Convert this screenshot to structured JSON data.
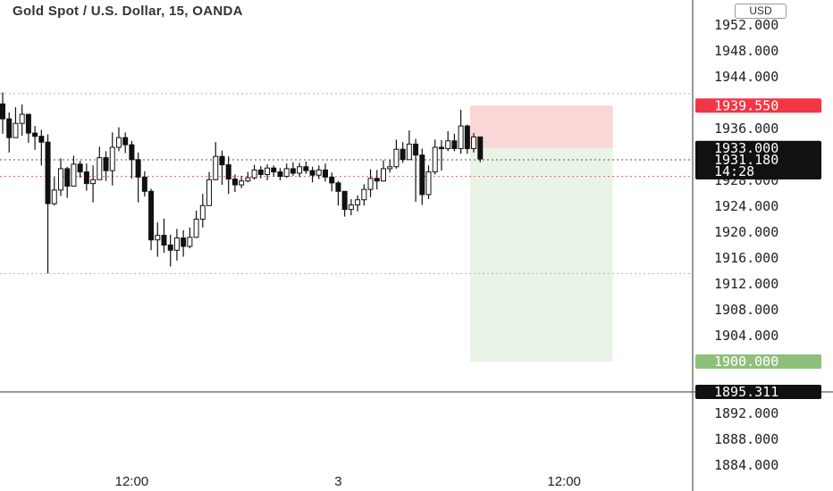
{
  "header": {
    "title": "Gold Spot / U.S. Dollar, 15, OANDA",
    "currency": "USD"
  },
  "colors": {
    "candle": "#111111",
    "stop_zone": "#f9d7d6",
    "target_zone": "#e9f4e6",
    "stop_label": "#f23645",
    "target_label": "#8ebf7b",
    "price_label": "#111111",
    "grid_dotted": "#b3b3b3",
    "red_dotted": "#d06a6a"
  },
  "chart_data": {
    "type": "candlestick",
    "symbol": "XAUUSD",
    "timeframe": "15",
    "ylim": [
      1883,
      1954
    ],
    "y_ticks": [
      1952,
      1948,
      1944,
      1936,
      1928,
      1924,
      1920,
      1916,
      1912,
      1908,
      1904,
      1892,
      1888,
      1884
    ],
    "y_tick_labels": [
      "1952.000",
      "1948.000",
      "1944.000",
      "1936.000",
      "1928.000",
      "1924.000",
      "1920.000",
      "1916.000",
      "1912.000",
      "1908.000",
      "1904.000",
      "1892.000",
      "1888.000",
      "1884.000"
    ],
    "x_tick_labels": [
      "12:00",
      "3",
      "12:00"
    ],
    "x_ticks_bar_index": [
      20,
      52,
      87
    ],
    "levels": {
      "high_dotted": 1941.4,
      "low_dotted": 1913.6,
      "current_dotted": 1931.18,
      "red_dotted": 1928.6,
      "horizontal_line": 1895.311
    },
    "position": {
      "type": "short",
      "start_bar": 73,
      "end_bar": 94,
      "entry": 1933.0,
      "stop": 1939.55,
      "target": 1900.0
    },
    "price_labels": [
      {
        "text": "1939.550",
        "value": 1939.55,
        "kind": "stop"
      },
      {
        "text": "1933.000",
        "value": 1933.0,
        "kind": "entry"
      },
      {
        "text": "1931.180",
        "value": 1931.18,
        "kind": "current",
        "countdown": "14:28"
      },
      {
        "text": "1900.000",
        "value": 1900.0,
        "kind": "target"
      },
      {
        "text": "1895.311",
        "value": 1895.311,
        "kind": "line"
      }
    ],
    "closes": [
      1937.5,
      1934.6,
      1936.8,
      1938.2,
      1935.3,
      1934.8,
      1933.9,
      1924.4,
      1926.5,
      1929.8,
      1927.1,
      1930.5,
      1929.3,
      1927.5,
      1928.1,
      1931.5,
      1929.5,
      1933.1,
      1934.6,
      1933.5,
      1931.2,
      1928.5,
      1926.3,
      1918.8,
      1919.5,
      1918.0,
      1917.2,
      1919.1,
      1917.8,
      1919.2,
      1922.0,
      1924.1,
      1928.1,
      1931.7,
      1930.4,
      1928.2,
      1927.3,
      1927.9,
      1928.4,
      1929.6,
      1928.9,
      1929.9,
      1929.3,
      1928.6,
      1929.8,
      1929.1,
      1930.1,
      1929.5,
      1928.8,
      1929.6,
      1928.5,
      1927.6,
      1926.3,
      1923.5,
      1924.2,
      1925.0,
      1926.6,
      1928.3,
      1927.9,
      1929.8,
      1930.1,
      1932.8,
      1931.2,
      1933.6,
      1931.9,
      1925.8,
      1929.3,
      1933.1,
      1932.9,
      1934.1,
      1932.9,
      1936.4,
      1932.9,
      1934.7,
      1931.3
    ],
    "highs": [
      1941.6,
      1938.5,
      1939.3,
      1939.7,
      1937.1,
      1936.4,
      1935.8,
      1935.1,
      1928.5,
      1931.4,
      1930.1,
      1931.8,
      1931.0,
      1930.6,
      1930.3,
      1933.2,
      1932.5,
      1935.4,
      1936.2,
      1935.4,
      1934.1,
      1932.3,
      1929.4,
      1926.7,
      1921.5,
      1922.1,
      1919.6,
      1920.5,
      1920.3,
      1920.7,
      1923.3,
      1925.9,
      1929.3,
      1933.9,
      1932.6,
      1931.7,
      1928.9,
      1928.7,
      1929.3,
      1930.4,
      1930.2,
      1930.5,
      1930.3,
      1929.9,
      1930.6,
      1930.8,
      1930.7,
      1930.9,
      1930.1,
      1930.3,
      1930.6,
      1929.2,
      1927.9,
      1926.1,
      1925.1,
      1925.7,
      1927.4,
      1929.7,
      1929.6,
      1931.1,
      1931.2,
      1934.3,
      1933.9,
      1935.7,
      1934.4,
      1932.9,
      1930.3,
      1934.3,
      1934.2,
      1935.6,
      1935.2,
      1938.9,
      1936.6,
      1935.3,
      1934.4
    ],
    "lows": [
      1935.2,
      1932.3,
      1934.6,
      1934.9,
      1933.8,
      1932.7,
      1930.3,
      1913.6,
      1924.1,
      1925.6,
      1925.3,
      1927.1,
      1928.4,
      1926.4,
      1924.6,
      1928.6,
      1927.9,
      1927.2,
      1932.5,
      1932.2,
      1928.3,
      1924.6,
      1925.5,
      1917.2,
      1916.2,
      1916.8,
      1914.7,
      1915.6,
      1916.2,
      1917.5,
      1919.1,
      1920.7,
      1925.3,
      1928.0,
      1927.3,
      1925.9,
      1926.2,
      1926.8,
      1927.7,
      1928.1,
      1928.3,
      1928.0,
      1928.6,
      1928.0,
      1928.4,
      1928.7,
      1928.5,
      1929.0,
      1927.7,
      1928.2,
      1927.8,
      1926.3,
      1924.1,
      1922.4,
      1922.6,
      1923.2,
      1924.1,
      1925.4,
      1926.6,
      1927.8,
      1929.2,
      1929.8,
      1930.7,
      1931.2,
      1924.7,
      1924.2,
      1925.1,
      1928.9,
      1929.5,
      1932.5,
      1932.5,
      1932.1,
      1932.1,
      1932.3,
      1930.8
    ]
  }
}
